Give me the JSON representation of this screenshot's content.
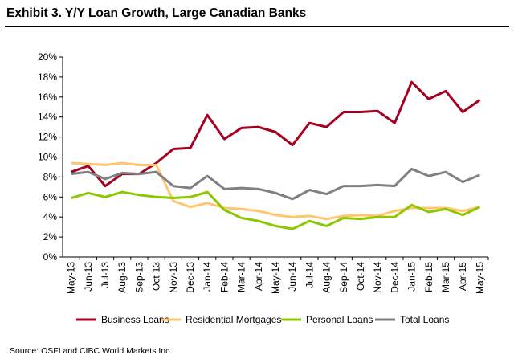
{
  "title": "Exhibit 3. Y/Y Loan Growth, Large Canadian Banks",
  "source": "Source: OSFI and CIBC World Markets Inc.",
  "chart_data": {
    "type": "line",
    "title": "Exhibit 3. Y/Y Loan Growth, Large Canadian Banks",
    "xlabel": "",
    "ylabel": "",
    "ylim": [
      0,
      20
    ],
    "yticks": [
      "0%",
      "2%",
      "4%",
      "6%",
      "8%",
      "10%",
      "12%",
      "14%",
      "16%",
      "18%",
      "20%"
    ],
    "grid": false,
    "legend": "bottom",
    "categories": [
      "May-13",
      "Jun-13",
      "Jul-13",
      "Aug-13",
      "Sep-13",
      "Oct-13",
      "Nov-13",
      "Dec-13",
      "Jan-14",
      "Feb-14",
      "Mar-14",
      "Apr-14",
      "May-14",
      "Jun-14",
      "Jul-14",
      "Aug-14",
      "Sep-14",
      "Oct-14",
      "Nov-14",
      "Dec-14",
      "Jan-15",
      "Feb-15",
      "Mar-15",
      "Apr-15",
      "May-15"
    ],
    "series": [
      {
        "name": "Business Loans",
        "color": "#a50021",
        "values": [
          8.5,
          9.1,
          7.1,
          8.3,
          8.3,
          9.4,
          10.8,
          10.9,
          14.2,
          11.8,
          12.9,
          13.0,
          12.5,
          11.2,
          13.4,
          13.0,
          14.5,
          14.5,
          14.6,
          13.4,
          17.5,
          15.8,
          16.6,
          14.5,
          15.7
        ]
      },
      {
        "name": "Residential Mortgages",
        "color": "#ffc66e",
        "values": [
          9.4,
          9.3,
          9.2,
          9.4,
          9.2,
          9.2,
          5.6,
          5.0,
          5.4,
          4.9,
          4.8,
          4.6,
          4.2,
          4.0,
          4.1,
          3.8,
          4.1,
          4.2,
          4.1,
          4.6,
          4.9,
          4.9,
          4.9,
          4.6,
          5.0
        ]
      },
      {
        "name": "Personal Loans",
        "color": "#8cc800",
        "values": [
          5.9,
          6.4,
          6.0,
          6.5,
          6.2,
          6.0,
          5.9,
          6.0,
          6.5,
          4.7,
          3.9,
          3.6,
          3.1,
          2.8,
          3.6,
          3.1,
          3.9,
          3.8,
          4.0,
          4.0,
          5.2,
          4.5,
          4.8,
          4.2,
          5.0
        ]
      },
      {
        "name": "Total Loans",
        "color": "#808080",
        "values": [
          8.3,
          8.5,
          7.8,
          8.4,
          8.3,
          8.5,
          7.1,
          6.9,
          8.1,
          6.8,
          6.9,
          6.8,
          6.4,
          5.8,
          6.7,
          6.3,
          7.1,
          7.1,
          7.2,
          7.1,
          8.8,
          8.1,
          8.5,
          7.5,
          8.2
        ]
      }
    ]
  }
}
